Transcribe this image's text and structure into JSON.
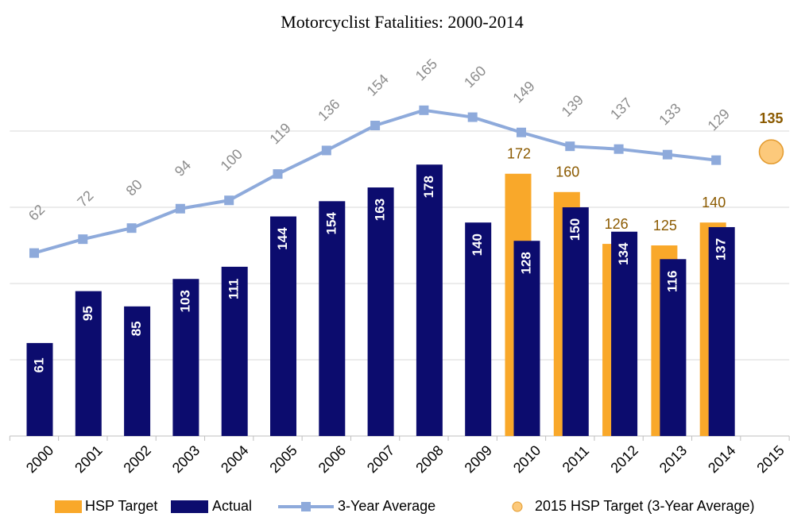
{
  "chart_data": {
    "type": "bar",
    "title": "Motorcyclist Fatalities: 2000-2014",
    "categories": [
      "2000",
      "2001",
      "2002",
      "2003",
      "2004",
      "2005",
      "2006",
      "2007",
      "2008",
      "2009",
      "2010",
      "2011",
      "2012",
      "2013",
      "2014",
      "2015"
    ],
    "series": [
      {
        "name": "HSP Target",
        "color": "#f9a82a",
        "values": [
          null,
          null,
          null,
          null,
          null,
          null,
          null,
          null,
          null,
          null,
          172,
          160,
          126,
          125,
          140,
          null
        ]
      },
      {
        "name": "Actual",
        "color": "#0c0c6e",
        "values": [
          61,
          95,
          85,
          103,
          111,
          144,
          154,
          163,
          178,
          140,
          128,
          150,
          134,
          116,
          137,
          null
        ]
      },
      {
        "name": "3-Year Average",
        "type": "line",
        "axis": "y2",
        "color": "#8eaadb",
        "values": [
          62,
          72,
          80,
          94,
          100,
          119,
          136,
          154,
          165,
          160,
          149,
          139,
          137,
          133,
          129,
          null
        ]
      },
      {
        "name": "2015 HSP Target (3-Year Average)",
        "type": "scatter",
        "axis": "y2",
        "color": "#fcc97b",
        "values": [
          null,
          null,
          null,
          null,
          null,
          null,
          null,
          null,
          null,
          null,
          null,
          null,
          null,
          null,
          null,
          135
        ]
      }
    ],
    "ylim": [
      0,
      250
    ],
    "yticks": [
      0,
      50,
      100,
      150,
      200
    ],
    "y2lim": [
      -70,
      205
    ],
    "grid": true
  }
}
